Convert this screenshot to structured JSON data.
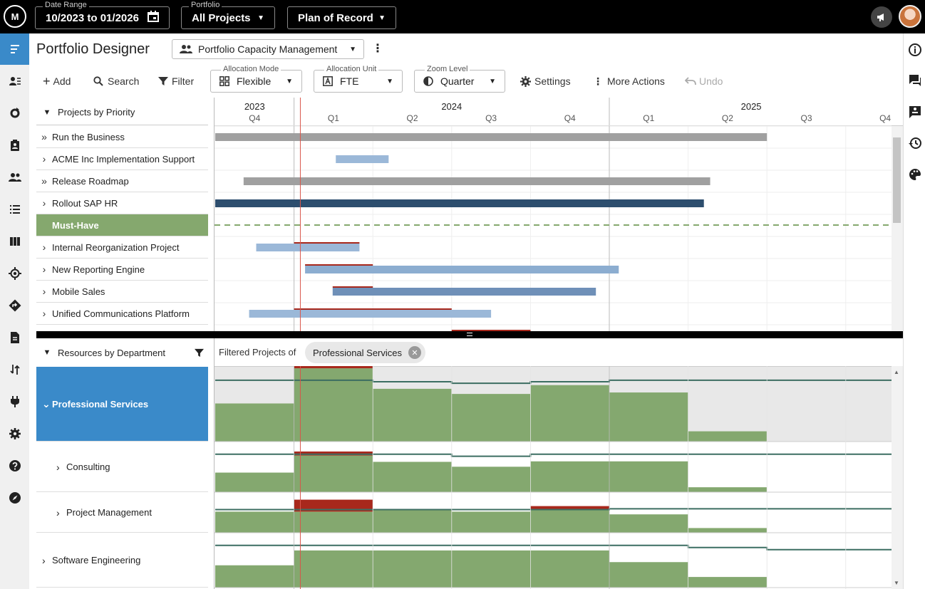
{
  "app": {
    "logo": "M"
  },
  "topbar": {
    "date_range": {
      "label": "Date Range",
      "value": "10/2023 to 01/2026"
    },
    "portfolio": {
      "label": "Portfolio",
      "value": "All Projects"
    },
    "plan": {
      "value": "Plan of Record"
    }
  },
  "nav_icons": [
    "menu-icon",
    "resource-list-icon",
    "refresh-cycle-icon",
    "clipboard-icon",
    "people-icon",
    "list-icon",
    "columns-icon",
    "target-icon",
    "routing-icon",
    "document-icon",
    "sort-icon",
    "plug-icon",
    "settings-icon",
    "help-icon",
    "compass-icon"
  ],
  "right_icons": [
    "info-icon",
    "comments-icon",
    "contact-card-icon",
    "history-icon",
    "palette-icon"
  ],
  "page": {
    "title": "Portfolio Designer",
    "view": "Portfolio Capacity Management"
  },
  "toolbar": {
    "add": "Add",
    "search": "Search",
    "filter": "Filter",
    "allocation_mode": {
      "label": "Allocation Mode",
      "value": "Flexible"
    },
    "allocation_unit": {
      "label": "Allocation Unit",
      "value": "FTE"
    },
    "zoom_level": {
      "label": "Zoom Level",
      "value": "Quarter"
    },
    "settings": "Settings",
    "more_actions": "More Actions",
    "undo": "Undo"
  },
  "projects": {
    "header": "Projects by Priority",
    "rows": [
      {
        "name": "Run the Business",
        "chev": "»"
      },
      {
        "name": "ACME Inc Implementation Support",
        "chev": "›"
      },
      {
        "name": "Release Roadmap",
        "chev": "»"
      },
      {
        "name": "Rollout SAP HR",
        "chev": "›"
      },
      {
        "name": "Must-Have",
        "chev": ""
      },
      {
        "name": "Internal Reorganization Project",
        "chev": "›"
      },
      {
        "name": "New Reporting Engine",
        "chev": "›"
      },
      {
        "name": "Mobile Sales",
        "chev": "›"
      },
      {
        "name": "Unified Communications Platform",
        "chev": "›"
      }
    ]
  },
  "timeline": {
    "years": [
      {
        "label": "2023",
        "start": 0,
        "end": 1
      },
      {
        "label": "2024",
        "start": 1,
        "end": 5
      },
      {
        "label": "2025",
        "start": 5,
        "end": 8.6
      }
    ],
    "quarters": [
      "Q4",
      "Q1",
      "Q2",
      "Q3",
      "Q4",
      "Q1",
      "Q2",
      "Q3",
      "Q4"
    ],
    "today_quarter": 1.08
  },
  "gantt_bars": [
    {
      "row": 0,
      "start": 0,
      "end": 7.0,
      "color": "#a0a0a0"
    },
    {
      "row": 1,
      "start": 1.53,
      "end": 2.2,
      "color": "#9bb8d8"
    },
    {
      "row": 2,
      "start": 0.36,
      "end": 6.28,
      "color": "#a0a0a0"
    },
    {
      "row": 3,
      "start": 0,
      "end": 6.2,
      "color": "#2d4e6e"
    },
    {
      "row": 5,
      "start": 0.52,
      "end": 1.83,
      "color": "#9bb8d8",
      "over_start": 1.0,
      "over_end": 1.83
    },
    {
      "row": 6,
      "start": 1.14,
      "end": 5.12,
      "color": "#8cadd0",
      "over_start": 1.14,
      "over_end": 2.0
    },
    {
      "row": 7,
      "start": 1.49,
      "end": 4.83,
      "color": "#6f90b8",
      "over_start": 1.49,
      "over_end": 2.0
    },
    {
      "row": 8,
      "start": 0.43,
      "end": 3.5,
      "color": "#9bb8d8",
      "over_start": 1.0,
      "over_end": 3.0
    }
  ],
  "resources": {
    "header": "Resources by Department",
    "filtered_label": "Filtered Projects of",
    "chip": "Professional Services",
    "departments": [
      {
        "name": "Professional Services",
        "chev": "⌄",
        "active": true,
        "indent": 0
      },
      {
        "name": "Consulting",
        "chev": "›",
        "active": false,
        "indent": 1
      },
      {
        "name": "Project Management",
        "chev": "›",
        "active": false,
        "indent": 1
      },
      {
        "name": "Software Engineering",
        "chev": "›",
        "active": false,
        "indent": 0
      }
    ]
  },
  "capacity_data": [
    {
      "demand": [
        0.52,
        1.0,
        0.72,
        0.65,
        0.77,
        0.67,
        0.14,
        0,
        0
      ],
      "capacity": [
        0.82,
        0.82,
        0.8,
        0.78,
        0.8,
        0.82,
        0.82,
        0.82,
        0.82
      ],
      "over": [
        0,
        0.2,
        0,
        0,
        0,
        0,
        0,
        0,
        0
      ],
      "shaded": true
    },
    {
      "demand": [
        0.4,
        0.75,
        0.62,
        0.52,
        0.63,
        0.63,
        0.1,
        0,
        0
      ],
      "capacity": [
        0.76,
        0.76,
        0.76,
        0.72,
        0.76,
        0.76,
        0.76,
        0.76,
        0.76
      ],
      "over": [
        0,
        0.08,
        0,
        0,
        0,
        0,
        0,
        0,
        0
      ],
      "shaded": false
    },
    {
      "demand": [
        0.54,
        0.54,
        0.58,
        0.54,
        0.6,
        0.47,
        0.12,
        0,
        0
      ],
      "capacity": [
        0.58,
        0.58,
        0.58,
        0.58,
        0.58,
        0.6,
        0.6,
        0.6,
        0.6
      ],
      "over": [
        0,
        0.3,
        0,
        0,
        0.08,
        0,
        0,
        0,
        0
      ],
      "shaded": false
    },
    {
      "demand": [
        0.42,
        0.7,
        0.7,
        0.7,
        0.7,
        0.48,
        0.2,
        0,
        0
      ],
      "capacity": [
        0.78,
        0.78,
        0.78,
        0.78,
        0.78,
        0.78,
        0.74,
        0.7,
        0.7
      ],
      "over": [
        0,
        0,
        0,
        0,
        0,
        0,
        0,
        0,
        0
      ],
      "shaded": false
    }
  ]
}
